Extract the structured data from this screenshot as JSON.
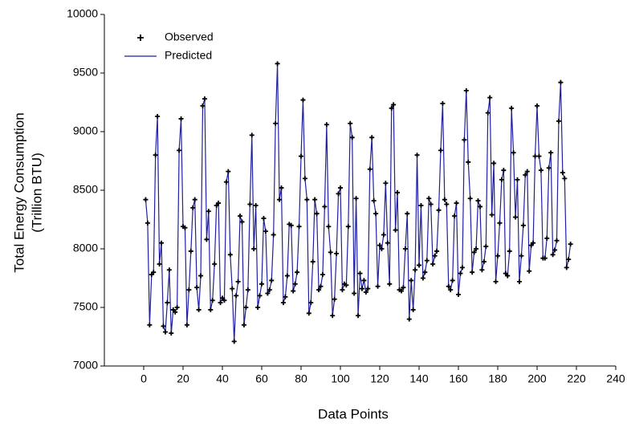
{
  "chart_data": {
    "type": "line",
    "xlabel": "Data Points",
    "ylabel": [
      "Total Energy Consumption",
      "(Trillion BTU)"
    ],
    "xlim": [
      -20,
      240
    ],
    "xticks": [
      0,
      20,
      40,
      60,
      80,
      100,
      120,
      140,
      160,
      180,
      200,
      220,
      240
    ],
    "ylim": [
      7000,
      10000
    ],
    "yticks": [
      7000,
      7500,
      8000,
      8500,
      9000,
      9500,
      10000
    ],
    "legend": "top-left",
    "x": [
      1,
      2,
      3,
      4,
      5,
      6,
      7,
      8,
      9,
      10,
      11,
      12,
      13,
      14,
      15,
      16,
      17,
      18,
      19,
      20,
      21,
      22,
      23,
      24,
      25,
      26,
      27,
      28,
      29,
      30,
      31,
      32,
      33,
      34,
      35,
      36,
      37,
      38,
      39,
      40,
      41,
      42,
      43,
      44,
      45,
      46,
      47,
      48,
      49,
      50,
      51,
      52,
      53,
      54,
      55,
      56,
      57,
      58,
      59,
      60,
      61,
      62,
      63,
      64,
      65,
      66,
      67,
      68,
      69,
      70,
      71,
      72,
      73,
      74,
      75,
      76,
      77,
      78,
      79,
      80,
      81,
      82,
      83,
      84,
      85,
      86,
      87,
      88,
      89,
      90,
      91,
      92,
      93,
      94,
      95,
      96,
      97,
      98,
      99,
      100,
      101,
      102,
      103,
      104,
      105,
      106,
      107,
      108,
      109,
      110,
      111,
      112,
      113,
      114,
      115,
      116,
      117,
      118,
      119,
      120,
      121,
      122,
      123,
      124,
      125,
      126,
      127,
      128,
      129,
      130,
      131,
      132,
      133,
      134,
      135,
      136,
      137,
      138,
      139,
      140,
      141,
      142,
      143,
      144,
      145,
      146,
      147,
      148,
      149,
      150,
      151,
      152,
      153,
      154,
      155,
      156,
      157,
      158,
      159,
      160,
      161,
      162,
      163,
      164,
      165,
      166,
      167,
      168,
      169,
      170,
      171,
      172,
      173,
      174,
      175,
      176,
      177,
      178,
      179,
      180,
      181,
      182,
      183,
      184,
      185,
      186,
      187,
      188,
      189,
      190,
      191,
      192,
      193,
      194,
      195,
      196,
      197,
      198,
      199,
      200,
      201,
      202,
      203,
      204,
      205,
      206,
      207,
      208,
      209,
      210,
      211,
      212,
      213,
      214,
      215,
      216,
      217
    ],
    "series": [
      {
        "name": "Observed",
        "color": "#000000",
        "marker": "+",
        "values": [
          8420,
          8220,
          7350,
          7780,
          7800,
          8800,
          9130,
          7870,
          8050,
          7340,
          7290,
          7540,
          7820,
          7280,
          7480,
          7460,
          7500,
          8840,
          9110,
          8190,
          8180,
          7350,
          7650,
          7980,
          8350,
          8420,
          7670,
          7480,
          7770,
          9220,
          9280,
          8080,
          8320,
          7480,
          7560,
          7870,
          8370,
          8390,
          7540,
          7580,
          7560,
          8570,
          8660,
          7950,
          7660,
          7210,
          7600,
          7720,
          8280,
          8230,
          7350,
          7500,
          7650,
          8380,
          8970,
          8000,
          8370,
          7500,
          7600,
          7700,
          8260,
          8150,
          7620,
          7650,
          7730,
          8120,
          9070,
          9580,
          8420,
          8520,
          7540,
          7590,
          7770,
          8210,
          8200,
          7640,
          7700,
          7800,
          8190,
          8790,
          9270,
          8600,
          8420,
          7450,
          7540,
          7890,
          8420,
          8300,
          7650,
          7680,
          7780,
          8360,
          9060,
          8190,
          7970,
          7430,
          7570,
          7960,
          8470,
          8520,
          7650,
          7700,
          7690,
          8190,
          9070,
          8950,
          7620,
          8430,
          7430,
          7790,
          7660,
          7730,
          7630,
          7660,
          8680,
          8950,
          8410,
          8300,
          7680,
          8030,
          8000,
          8120,
          8560,
          8050,
          7700,
          9200,
          9230,
          8160,
          8480,
          7650,
          7640,
          7670,
          8000,
          8300,
          7400,
          7730,
          7480,
          7820,
          8800,
          7860,
          8370,
          7750,
          7800,
          7900,
          8430,
          8380,
          7870,
          7940,
          7980,
          8330,
          8840,
          9240,
          8420,
          8380,
          7680,
          7650,
          7730,
          8280,
          8390,
          7610,
          7790,
          7840,
          8930,
          9350,
          8740,
          8430,
          7800,
          7970,
          8000,
          8410,
          8360,
          7820,
          7890,
          8020,
          9160,
          9290,
          8290,
          8730,
          7720,
          7940,
          8220,
          8590,
          8670,
          7790,
          7770,
          7980,
          9200,
          8820,
          8270,
          8590,
          7720,
          7940,
          8200,
          8630,
          8660,
          7810,
          8030,
          8050,
          8790,
          9220,
          8790,
          8670,
          7920,
          7920,
          8090,
          8690,
          8820,
          7950,
          7990,
          8070,
          9090,
          9420,
          8650,
          8600,
          7840,
          7910,
          8040
        ]
      },
      {
        "name": "Predicted",
        "color": "#1f1fa0",
        "values": [
          8420,
          8220,
          7350,
          7780,
          7800,
          8800,
          9130,
          7870,
          8050,
          7340,
          7290,
          7540,
          7820,
          7280,
          7480,
          7460,
          7500,
          8840,
          9110,
          8190,
          8180,
          7350,
          7650,
          7980,
          8350,
          8420,
          7670,
          7480,
          7770,
          9220,
          9280,
          8080,
          8320,
          7480,
          7560,
          7870,
          8370,
          8390,
          7540,
          7580,
          7560,
          8570,
          8660,
          7950,
          7660,
          7210,
          7600,
          7720,
          8280,
          8230,
          7350,
          7500,
          7650,
          8380,
          8970,
          8000,
          8370,
          7500,
          7600,
          7700,
          8260,
          8150,
          7620,
          7650,
          7730,
          8120,
          9070,
          9580,
          8420,
          8520,
          7540,
          7590,
          7770,
          8210,
          8200,
          7640,
          7700,
          7800,
          8190,
          8790,
          9270,
          8600,
          8420,
          7450,
          7540,
          7890,
          8420,
          8300,
          7650,
          7680,
          7780,
          8360,
          9060,
          8190,
          7970,
          7430,
          7570,
          7960,
          8470,
          8520,
          7650,
          7700,
          7690,
          8190,
          9070,
          8950,
          7620,
          8430,
          7430,
          7790,
          7660,
          7730,
          7630,
          7660,
          8680,
          8950,
          8410,
          8300,
          7680,
          8030,
          8000,
          8120,
          8560,
          8050,
          7700,
          9200,
          9230,
          8160,
          8480,
          7650,
          7640,
          7670,
          8000,
          8300,
          7400,
          7730,
          7480,
          7820,
          8800,
          7860,
          8370,
          7750,
          7800,
          7900,
          8430,
          8380,
          7870,
          7940,
          7980,
          8330,
          8840,
          9240,
          8420,
          8380,
          7680,
          7650,
          7730,
          8280,
          8390,
          7610,
          7790,
          7840,
          8930,
          9350,
          8740,
          8430,
          7800,
          7970,
          8000,
          8410,
          8360,
          7820,
          7890,
          8020,
          9160,
          9290,
          8290,
          8730,
          7720,
          7940,
          8220,
          8590,
          8670,
          7790,
          7770,
          7980,
          9200,
          8820,
          8270,
          8590,
          7720,
          7940,
          8200,
          8630,
          8660,
          7810,
          8030,
          8050,
          8790,
          9220,
          8790,
          8670,
          7920,
          7920,
          8090,
          8690,
          8820,
          7950,
          7990,
          8070,
          9090,
          9420,
          8650,
          8600,
          7840,
          7910,
          8040
        ]
      }
    ]
  }
}
